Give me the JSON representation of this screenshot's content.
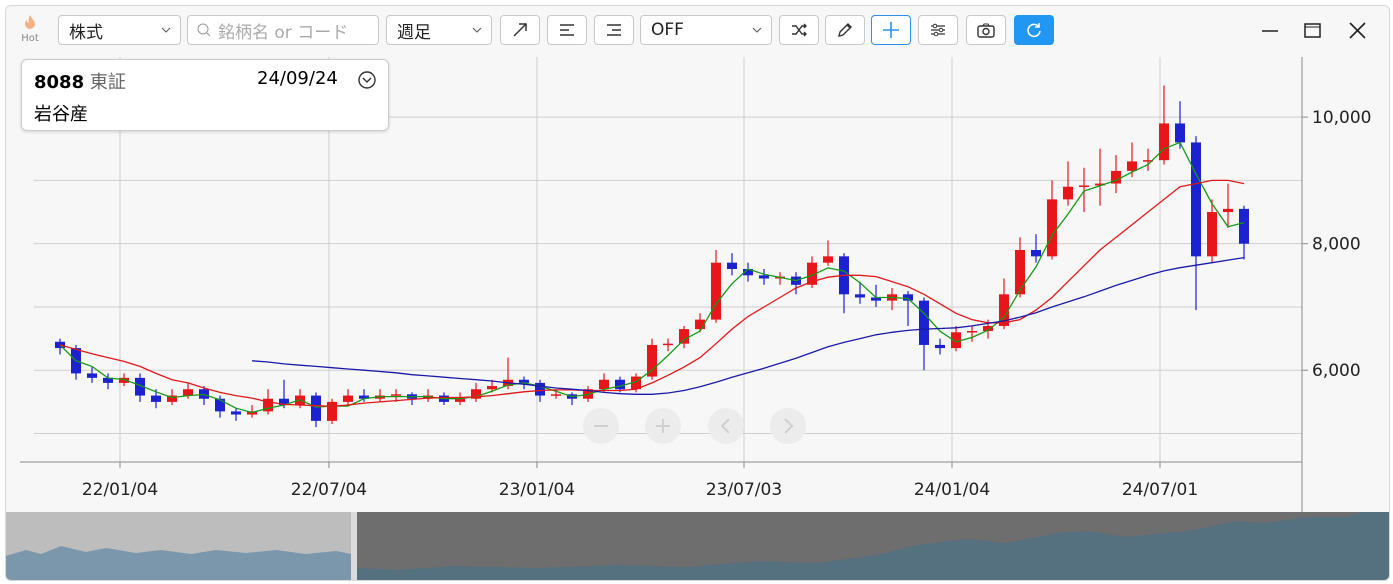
{
  "toolbar": {
    "hot_label": "Hot",
    "market_select": "株式",
    "search_placeholder": "銘柄名 or コード",
    "period_select": "週足",
    "indicator_select": "OFF"
  },
  "info_box": {
    "code": "8088",
    "exchange": "東証",
    "date": "24/09/24",
    "name": "岩谷産"
  },
  "chart_data": {
    "type": "candlestick",
    "up_color": "#e8161b",
    "down_color": "#1c22d0",
    "ohlc": [
      [
        6450,
        6500,
        6250,
        6350
      ],
      [
        6350,
        6400,
        5850,
        5950
      ],
      [
        5950,
        6050,
        5800,
        5880
      ],
      [
        5880,
        5950,
        5700,
        5800
      ],
      [
        5800,
        5950,
        5750,
        5880
      ],
      [
        5880,
        5950,
        5500,
        5600
      ],
      [
        5600,
        5700,
        5400,
        5500
      ],
      [
        5500,
        5700,
        5450,
        5600
      ],
      [
        5600,
        5800,
        5550,
        5700
      ],
      [
        5700,
        5750,
        5450,
        5550
      ],
      [
        5550,
        5600,
        5250,
        5350
      ],
      [
        5350,
        5400,
        5200,
        5300
      ],
      [
        5300,
        5450,
        5250,
        5350
      ],
      [
        5350,
        5700,
        5300,
        5550
      ],
      [
        5550,
        5850,
        5400,
        5450
      ],
      [
        5450,
        5700,
        5400,
        5600
      ],
      [
        5600,
        5650,
        5100,
        5200
      ],
      [
        5200,
        5550,
        5150,
        5500
      ],
      [
        5500,
        5700,
        5450,
        5600
      ],
      [
        5600,
        5700,
        5500,
        5550
      ],
      [
        5550,
        5700,
        5500,
        5600
      ],
      [
        5600,
        5700,
        5500,
        5620
      ],
      [
        5620,
        5650,
        5450,
        5550
      ],
      [
        5550,
        5700,
        5500,
        5600
      ],
      [
        5600,
        5650,
        5450,
        5500
      ],
      [
        5500,
        5650,
        5450,
        5550
      ],
      [
        5550,
        5800,
        5500,
        5700
      ],
      [
        5700,
        5850,
        5650,
        5750
      ],
      [
        5750,
        6200,
        5700,
        5850
      ],
      [
        5850,
        5900,
        5700,
        5800
      ],
      [
        5800,
        5850,
        5500,
        5600
      ],
      [
        5600,
        5700,
        5550,
        5620
      ],
      [
        5620,
        5650,
        5450,
        5550
      ],
      [
        5550,
        5750,
        5500,
        5700
      ],
      [
        5700,
        5950,
        5650,
        5850
      ],
      [
        5850,
        5900,
        5650,
        5700
      ],
      [
        5700,
        5950,
        5650,
        5900
      ],
      [
        5900,
        6500,
        5850,
        6400
      ],
      [
        6400,
        6500,
        6300,
        6420
      ],
      [
        6420,
        6700,
        6350,
        6650
      ],
      [
        6650,
        6900,
        6600,
        6800
      ],
      [
        6800,
        7900,
        6750,
        7700
      ],
      [
        7700,
        7850,
        7500,
        7600
      ],
      [
        7600,
        7700,
        7400,
        7500
      ],
      [
        7500,
        7600,
        7350,
        7450
      ],
      [
        7450,
        7550,
        7350,
        7480
      ],
      [
        7480,
        7550,
        7200,
        7350
      ],
      [
        7350,
        7800,
        7300,
        7700
      ],
      [
        7700,
        8050,
        7650,
        7800
      ],
      [
        7800,
        7850,
        6900,
        7200
      ],
      [
        7200,
        7400,
        7050,
        7150
      ],
      [
        7150,
        7350,
        7000,
        7100
      ],
      [
        7100,
        7300,
        6950,
        7200
      ],
      [
        7200,
        7250,
        6700,
        7100
      ],
      [
        7100,
        7150,
        6000,
        6400
      ],
      [
        6400,
        6500,
        6250,
        6350
      ],
      [
        6350,
        6700,
        6300,
        6600
      ],
      [
        6600,
        6700,
        6450,
        6620
      ],
      [
        6620,
        6800,
        6500,
        6700
      ],
      [
        6700,
        7450,
        6650,
        7200
      ],
      [
        7200,
        8100,
        7150,
        7900
      ],
      [
        7900,
        8150,
        7700,
        7800
      ],
      [
        7800,
        9000,
        7750,
        8700
      ],
      [
        8700,
        9300,
        8600,
        8900
      ],
      [
        8900,
        9200,
        8500,
        8920
      ],
      [
        8920,
        9500,
        8600,
        8950
      ],
      [
        8950,
        9400,
        8800,
        9150
      ],
      [
        9150,
        9600,
        9050,
        9300
      ],
      [
        9300,
        9500,
        9150,
        9320
      ],
      [
        9320,
        10500,
        9250,
        9900
      ],
      [
        9900,
        10250,
        9500,
        9600
      ],
      [
        9600,
        9700,
        6950,
        7800
      ],
      [
        7800,
        8700,
        7700,
        8500
      ],
      [
        8500,
        8950,
        8250,
        8550
      ],
      [
        8550,
        8600,
        7750,
        8000
      ]
    ],
    "series": [
      {
        "color": "#159a15",
        "values": [
          6400,
          6150,
          6060,
          5877,
          5853,
          5760,
          5660,
          5567,
          5600,
          5617,
          5533,
          5400,
          5333,
          5400,
          5450,
          5533,
          5417,
          5433,
          5433,
          5550,
          5583,
          5583,
          5583,
          5583,
          5550,
          5550,
          5583,
          5667,
          5767,
          5800,
          5750,
          5667,
          5583,
          5617,
          5700,
          5750,
          5817,
          6000,
          6233,
          6483,
          6617,
          7050,
          7367,
          7600,
          7517,
          7467,
          7417,
          7500,
          7617,
          7567,
          7383,
          7150,
          7150,
          7133,
          6900,
          6617,
          6450,
          6517,
          6633,
          6833,
          7267,
          7633,
          8133,
          8467,
          8833,
          8917,
          9000,
          9133,
          9250,
          9500,
          9600,
          9100,
          8633,
          8267,
          8333
        ]
      },
      {
        "color": "#e01818",
        "values": [
          6400,
          6330,
          6260,
          6200,
          6140,
          6060,
          5950,
          5850,
          5800,
          5720,
          5650,
          5600,
          5560,
          5500,
          5460,
          5450,
          5440,
          5430,
          5450,
          5480,
          5500,
          5520,
          5540,
          5560,
          5570,
          5570,
          5580,
          5600,
          5630,
          5660,
          5680,
          5690,
          5690,
          5680,
          5680,
          5680,
          5700,
          5800,
          5920,
          6050,
          6200,
          6420,
          6650,
          6850,
          7000,
          7150,
          7300,
          7400,
          7470,
          7500,
          7500,
          7480,
          7400,
          7320,
          7200,
          7050,
          6900,
          6800,
          6750,
          6750,
          6800,
          6950,
          7150,
          7400,
          7650,
          7900,
          8100,
          8300,
          8500,
          8700,
          8900,
          8950,
          9000,
          9000,
          8950
        ]
      },
      {
        "color": "#1a1aa8",
        "values": [
          null,
          null,
          null,
          null,
          null,
          null,
          null,
          null,
          null,
          null,
          null,
          null,
          6150,
          6130,
          6100,
          6080,
          6060,
          6040,
          6020,
          6000,
          5980,
          5960,
          5930,
          5910,
          5890,
          5870,
          5850,
          5830,
          5800,
          5780,
          5750,
          5720,
          5700,
          5680,
          5650,
          5630,
          5620,
          5620,
          5640,
          5680,
          5740,
          5810,
          5890,
          5960,
          6030,
          6110,
          6190,
          6280,
          6370,
          6440,
          6500,
          6560,
          6600,
          6630,
          6650,
          6660,
          6670,
          6700,
          6740,
          6780,
          6840,
          6910,
          7000,
          7080,
          7160,
          7250,
          7340,
          7420,
          7500,
          7570,
          7620,
          7660,
          7700,
          7740,
          7780
        ]
      }
    ],
    "xlim": [
      -2.5,
      77.625
    ],
    "xticks": [
      {
        "value": 3.75,
        "label": "22/01/04"
      },
      {
        "value": 16.81,
        "label": "22/07/04"
      },
      {
        "value": 29.81,
        "label": "23/01/04"
      },
      {
        "value": 42.75,
        "label": "23/07/03"
      },
      {
        "value": 55.75,
        "label": "24/01/04"
      },
      {
        "value": 68.75,
        "label": "24/07/01"
      }
    ],
    "ylim": [
      4550,
      10950
    ],
    "yticks": [
      {
        "value": 6000,
        "label": "6,000"
      },
      {
        "value": 8000,
        "label": "8,000"
      },
      {
        "value": 10000,
        "label": "10,000"
      }
    ],
    "minor_gridlines": [
      5000,
      7000,
      9000
    ],
    "grid": true
  }
}
